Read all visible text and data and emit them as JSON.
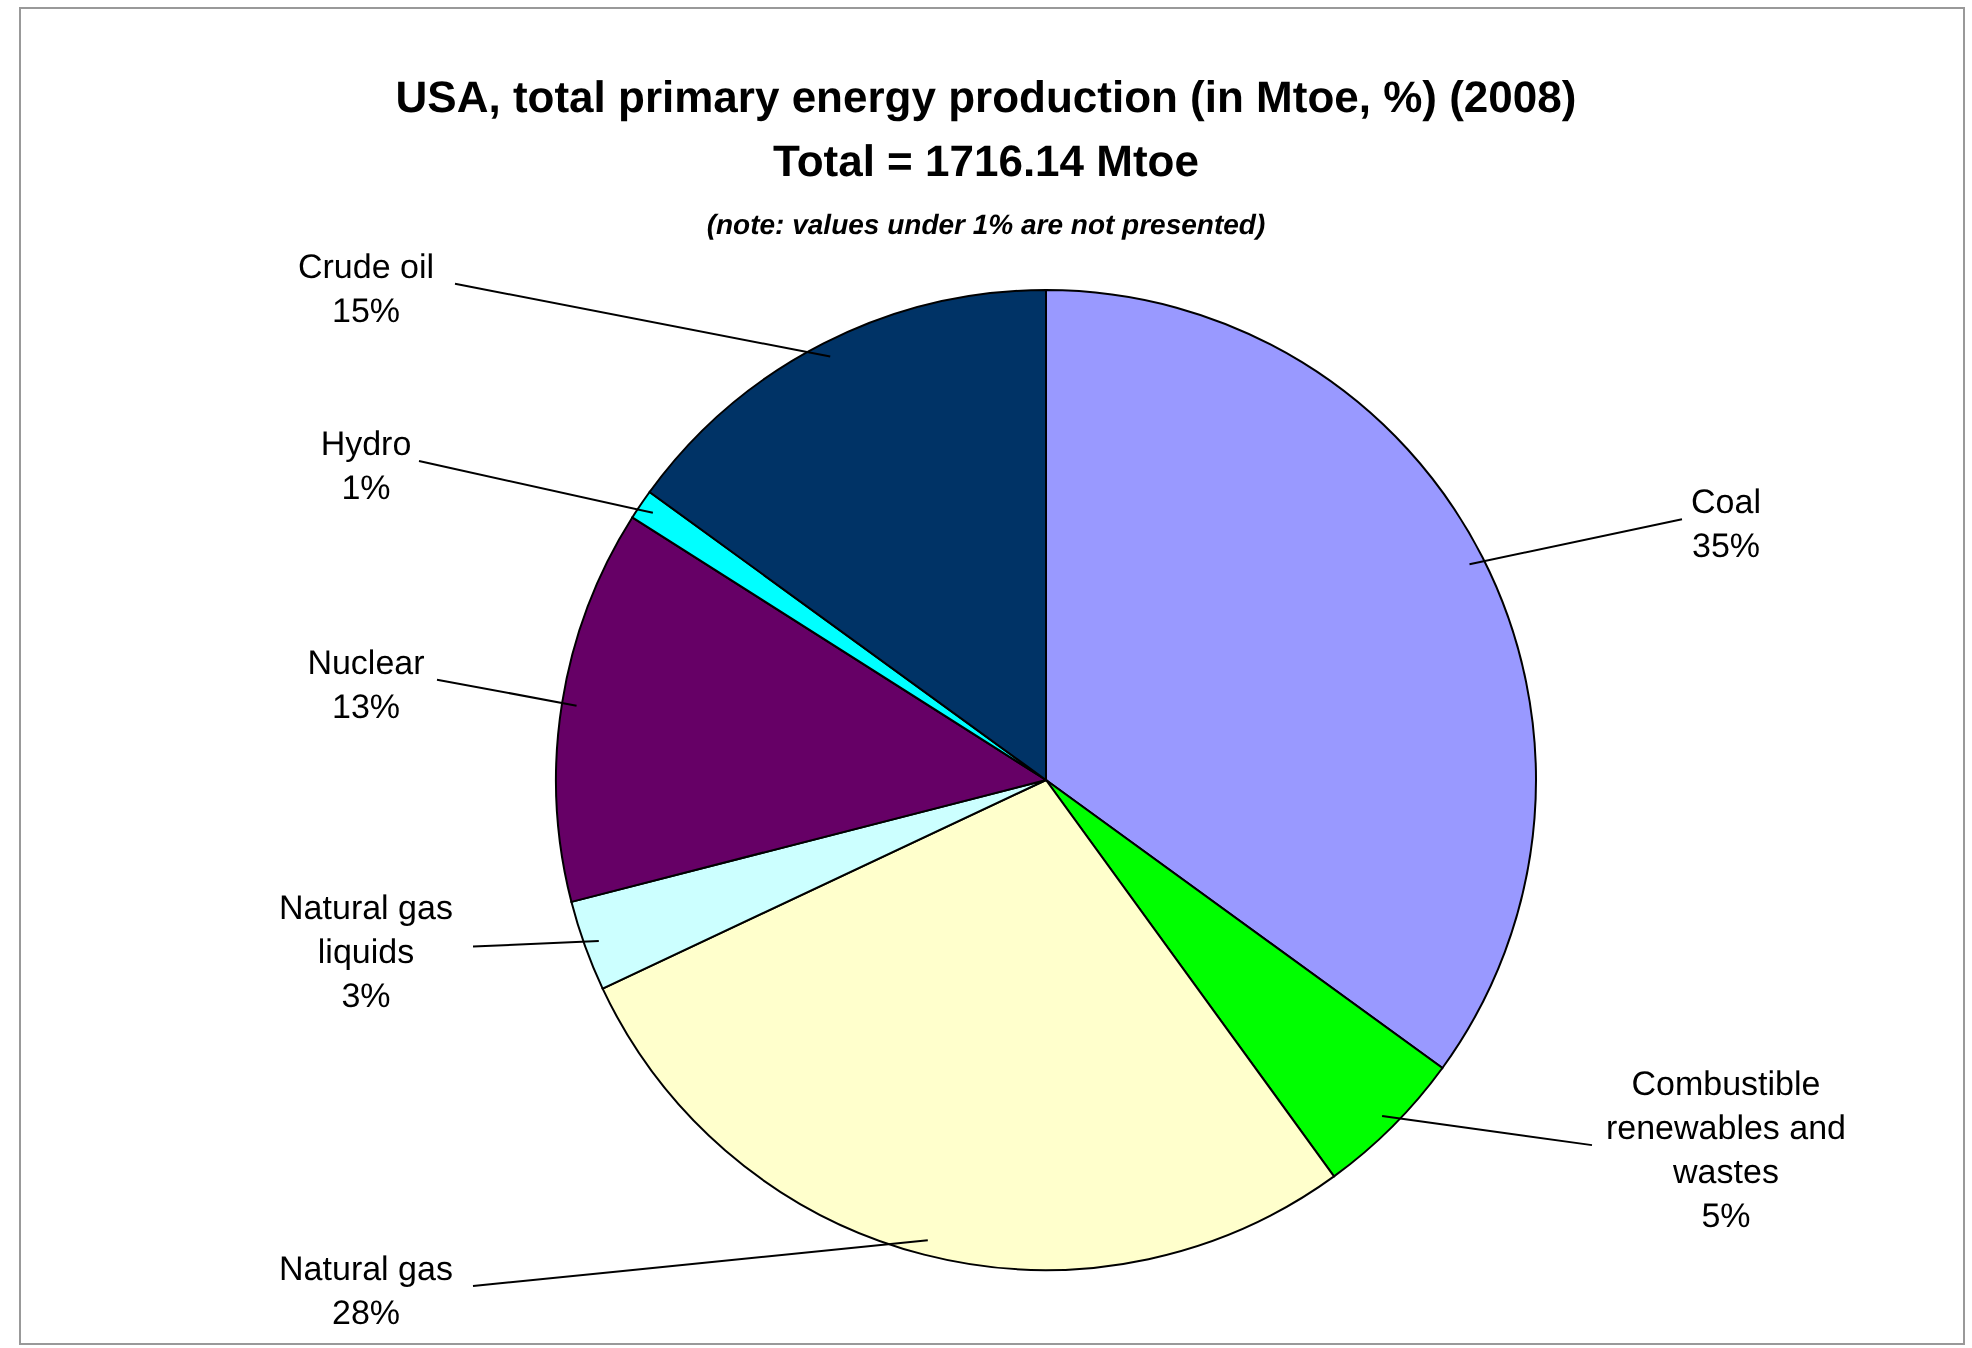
{
  "chart_data": {
    "type": "pie",
    "title": "USA, total primary energy production (in Mtoe, %) (2008)",
    "subtitle": "Total = 1716.14 Mtoe",
    "annotations": [
      "(note: values under 1% are not presented)"
    ],
    "categories": [
      "Coal",
      "Combustible renewables and wastes",
      "Natural gas",
      "Natural gas liquids",
      "Nuclear",
      "Hydro",
      "Crude oil"
    ],
    "values": [
      35,
      5,
      28,
      3,
      13,
      1,
      15
    ],
    "value_labels": [
      "35%",
      "5%",
      "28%",
      "3%",
      "13%",
      "1%",
      "15%"
    ],
    "colors": [
      "#9999ff",
      "#00ff00",
      "#ffffcc",
      "#ccffff",
      "#660066",
      "#00ffff",
      "#003366"
    ]
  }
}
